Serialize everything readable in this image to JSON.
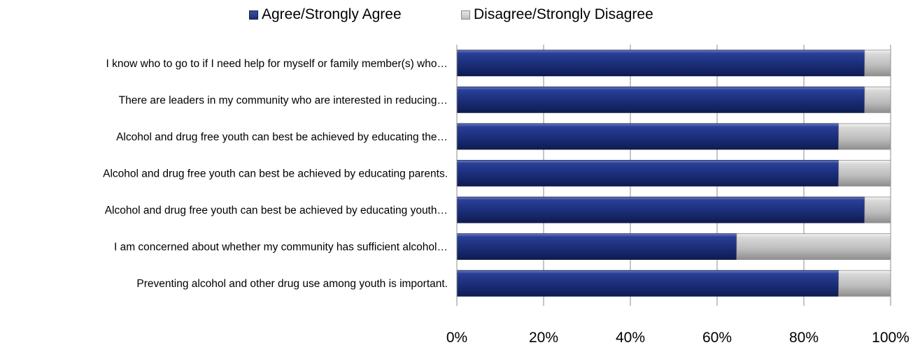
{
  "chart_data": {
    "type": "bar",
    "orientation": "horizontal",
    "stacked": true,
    "categories": [
      "I know who to go to if I need help for myself or family member(s) who…",
      "There are leaders in my community who are interested in reducing…",
      "Alcohol and drug free youth can best be achieved by educating the…",
      "Alcohol and drug free youth can best be achieved by educating parents.",
      "Alcohol and drug free youth can best be achieved by educating youth…",
      "I am concerned about whether my community has sufficient alcohol…",
      "Preventing alcohol and other drug use among youth is important."
    ],
    "series": [
      {
        "name": "Agree/Strongly Agree",
        "color": "#1b2f7a",
        "values": [
          94,
          94,
          88,
          88,
          94,
          64.5,
          88
        ]
      },
      {
        "name": "Disagree/Strongly Disagree",
        "color": "#bdbdbd",
        "values": [
          6,
          6,
          12,
          12,
          6,
          35.5,
          12
        ]
      }
    ],
    "xlim": [
      0,
      100
    ],
    "xticks": [
      0,
      20,
      40,
      60,
      80,
      100
    ],
    "tick_labels": [
      "0%",
      "20%",
      "40%",
      "60%",
      "80%",
      "100%"
    ],
    "grid": true,
    "legend": "top-center"
  }
}
